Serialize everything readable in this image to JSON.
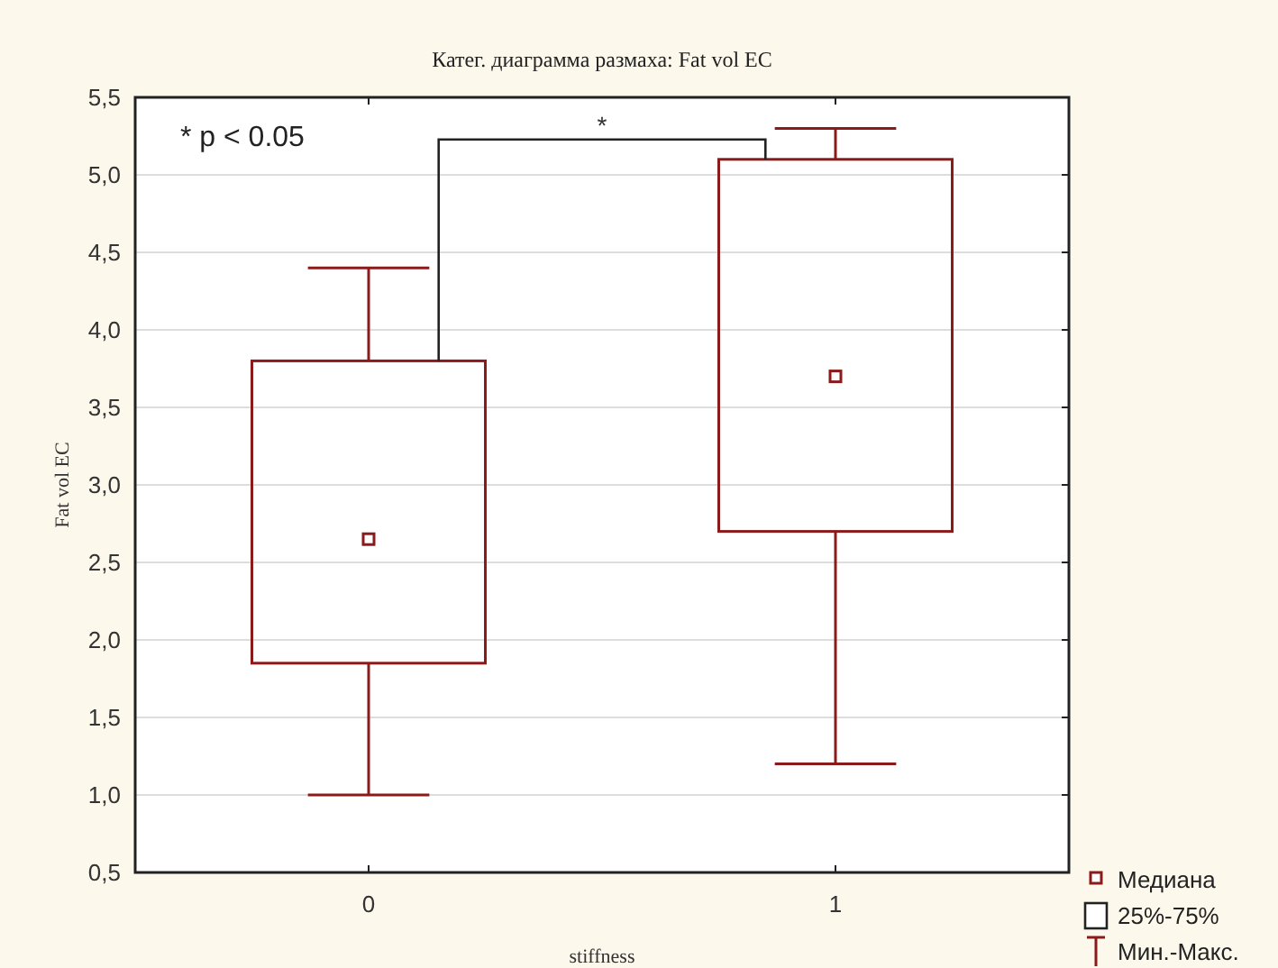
{
  "chart_data": {
    "type": "box",
    "title": "Катег. диаграмма размаха: Fat vol EC",
    "xlabel": "stiffness",
    "ylabel": "Fat vol EC",
    "categories": [
      "0",
      "1"
    ],
    "boxes": [
      {
        "low": 1.0,
        "q1": 1.85,
        "median": 2.65,
        "q3": 3.8,
        "high": 4.4
      },
      {
        "low": 1.2,
        "q1": 2.7,
        "median": 3.7,
        "q3": 5.1,
        "high": 5.3
      }
    ],
    "color": "#8b1a1a",
    "ylim": [
      0.5,
      5.5
    ],
    "yticks": [
      {
        "value": 0.5,
        "label": "0,5"
      },
      {
        "value": 1,
        "label": "1,0"
      },
      {
        "value": 1.5,
        "label": "1,5"
      },
      {
        "value": 2,
        "label": "2,0"
      },
      {
        "value": 2.5,
        "label": "2,5"
      },
      {
        "value": 3,
        "label": "3,0"
      },
      {
        "value": 3.5,
        "label": "3,5"
      },
      {
        "value": 4,
        "label": "4,0"
      },
      {
        "value": 4.5,
        "label": "4,5"
      },
      {
        "value": 5,
        "label": "5,0"
      },
      {
        "value": 5.5,
        "label": "5,5"
      }
    ],
    "grid": "y",
    "annotations": [
      "* p < 0.05",
      "*",
      "Медиана",
      "25%-75%",
      "Мин.-Макс."
    ]
  }
}
